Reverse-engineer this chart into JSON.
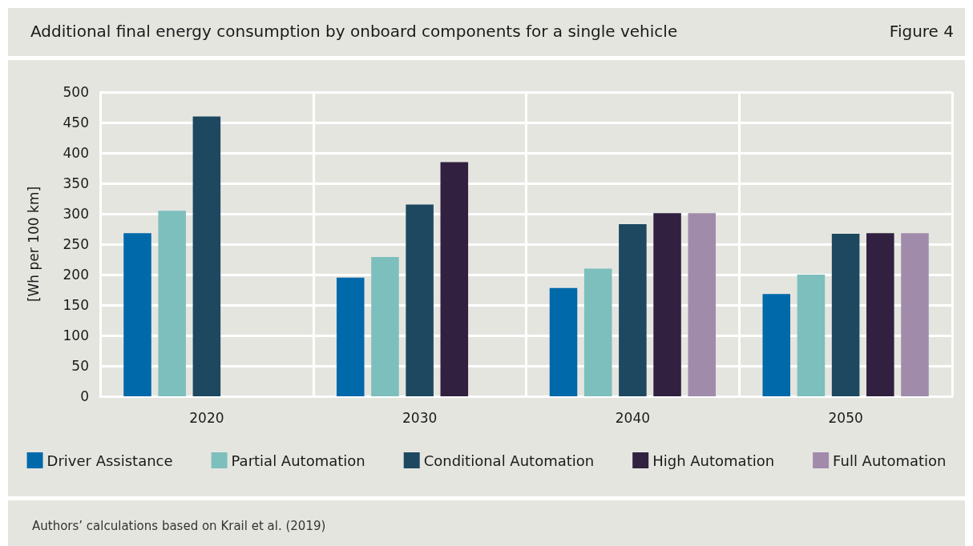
{
  "chart_data": {
    "type": "bar",
    "title": "Additional final energy consumption by onboard components for a single vehicle",
    "ylabel": "[Wh per 100 km]",
    "annotations": [
      "Figure 4",
      "Authors’ calculations based on Krail et al. (2019)"
    ],
    "categories": [
      "2020",
      "2030",
      "2040",
      "2050"
    ],
    "series": [
      {
        "name": "Driver Assistance",
        "color": "#0069aa",
        "values": [
          268,
          195,
          178,
          168
        ]
      },
      {
        "name": "Partial Automation",
        "color": "#7dbfbc",
        "values": [
          305,
          229,
          210,
          200
        ]
      },
      {
        "name": "Conditional Automation",
        "color": "#1d4860",
        "values": [
          460,
          315,
          283,
          267
        ]
      },
      {
        "name": "High Automation",
        "color": "#31203f",
        "values": [
          null,
          385,
          301,
          268
        ]
      },
      {
        "name": "Full Automation",
        "color": "#a18bab",
        "values": [
          null,
          null,
          301,
          268
        ]
      }
    ],
    "ylim": [
      0,
      500
    ],
    "yticks": [
      0,
      50,
      100,
      150,
      200,
      250,
      300,
      350,
      400,
      450,
      500
    ],
    "grid": true,
    "legend": "bottom"
  }
}
